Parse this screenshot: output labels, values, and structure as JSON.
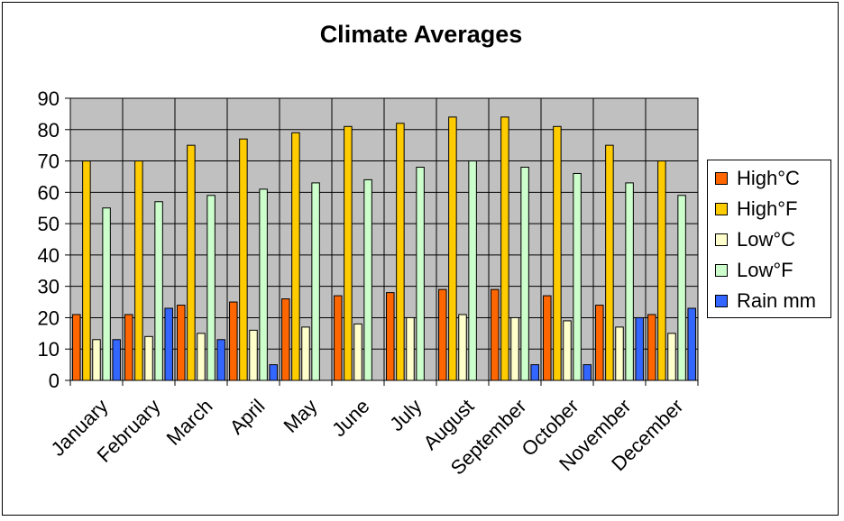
{
  "chart_data": {
    "type": "bar",
    "title": "Climate Averages",
    "xlabel": "",
    "ylabel": "",
    "ylim": [
      0,
      90
    ],
    "yticks": [
      0,
      10,
      20,
      30,
      40,
      50,
      60,
      70,
      80,
      90
    ],
    "grid": true,
    "legend_position": "right",
    "plot_background": "#c0c0c0",
    "categories": [
      "January",
      "February",
      "March",
      "April",
      "May",
      "June",
      "July",
      "August",
      "September",
      "October",
      "November",
      "December"
    ],
    "series": [
      {
        "name": "High°C",
        "color": "#ff6600",
        "values": [
          21,
          21,
          24,
          25,
          26,
          27,
          28,
          29,
          29,
          27,
          24,
          21
        ]
      },
      {
        "name": "High°F",
        "color": "#ffcc00",
        "values": [
          70,
          70,
          75,
          77,
          79,
          81,
          82,
          84,
          84,
          81,
          75,
          70
        ]
      },
      {
        "name": "Low°C",
        "color": "#ffffcc",
        "values": [
          13,
          14,
          15,
          16,
          17,
          18,
          20,
          21,
          20,
          19,
          17,
          15
        ]
      },
      {
        "name": "Low°F",
        "color": "#ccffcc",
        "values": [
          55,
          57,
          59,
          61,
          63,
          64,
          68,
          70,
          68,
          66,
          63,
          59
        ]
      },
      {
        "name": "Rain mm",
        "color": "#3366ff",
        "values": [
          13,
          23,
          13,
          5,
          0,
          0,
          0,
          0,
          5,
          5,
          20,
          23
        ]
      }
    ]
  }
}
